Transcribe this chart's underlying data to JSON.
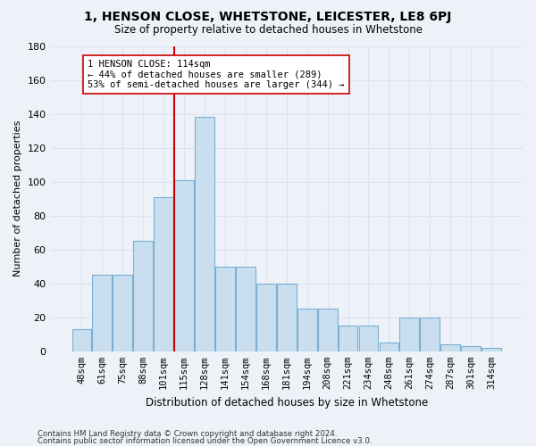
{
  "title": "1, HENSON CLOSE, WHETSTONE, LEICESTER, LE8 6PJ",
  "subtitle": "Size of property relative to detached houses in Whetstone",
  "xlabel": "Distribution of detached houses by size in Whetstone",
  "ylabel": "Number of detached properties",
  "categories": [
    "48sqm",
    "61sqm",
    "75sqm",
    "88sqm",
    "101sqm",
    "115sqm",
    "128sqm",
    "141sqm",
    "154sqm",
    "168sqm",
    "181sqm",
    "194sqm",
    "208sqm",
    "221sqm",
    "234sqm",
    "248sqm",
    "261sqm",
    "274sqm",
    "287sqm",
    "301sqm",
    "314sqm"
  ],
  "values": [
    13,
    45,
    45,
    65,
    91,
    101,
    138,
    50,
    50,
    40,
    40,
    25,
    25,
    15,
    15,
    5,
    20,
    20,
    4,
    3,
    2
  ],
  "bar_color": "#c9dff0",
  "bar_edge_color": "#7aafd4",
  "vline_color": "#cc0000",
  "vline_x": 4.5,
  "annotation_text": "1 HENSON CLOSE: 114sqm\n← 44% of detached houses are smaller (289)\n53% of semi-detached houses are larger (344) →",
  "annotation_box_color": "#ffffff",
  "annotation_box_edge": "#cc0000",
  "ylim": [
    0,
    180
  ],
  "yticks": [
    0,
    20,
    40,
    60,
    80,
    100,
    120,
    140,
    160,
    180
  ],
  "footer1": "Contains HM Land Registry data © Crown copyright and database right 2024.",
  "footer2": "Contains public sector information licensed under the Open Government Licence v3.0.",
  "bg_color": "#eef2f8",
  "grid_color": "#d8e4f0"
}
